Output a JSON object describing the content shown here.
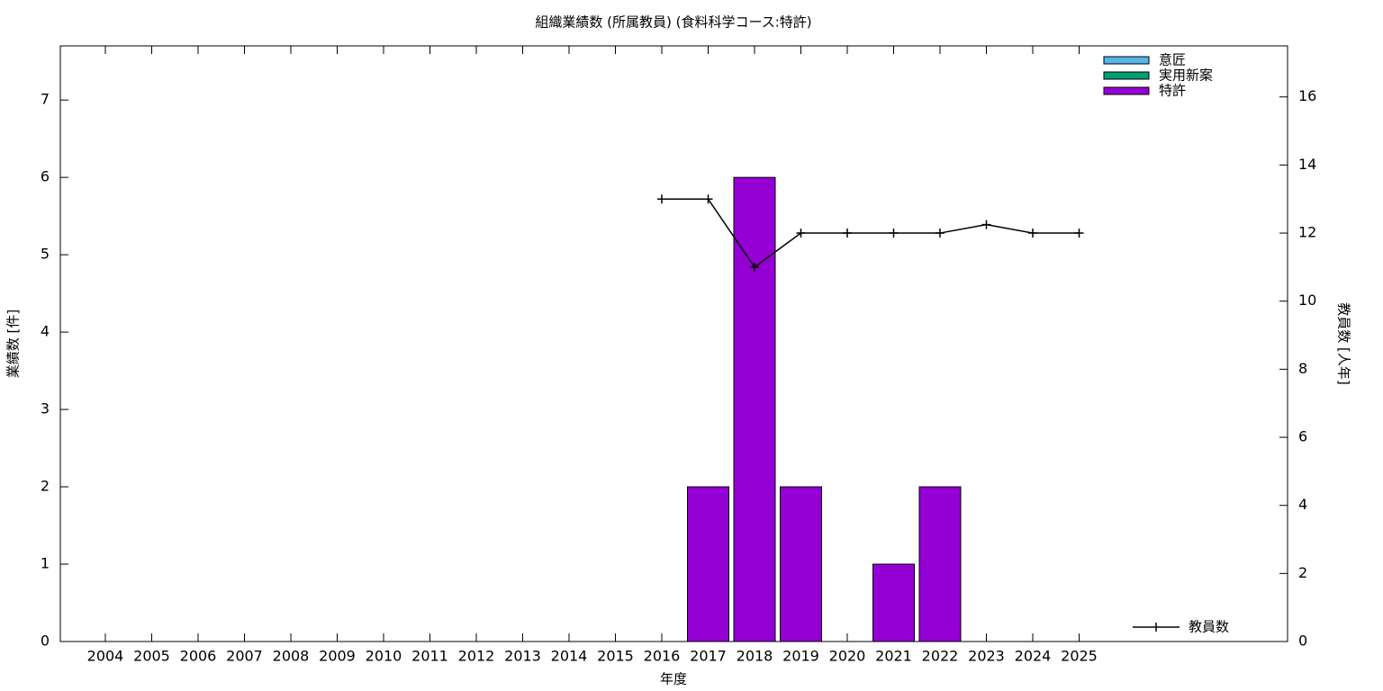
{
  "chart_data": {
    "type": "bar",
    "title": "組織業績数 (所属教員) (食料科学コース:特許)",
    "xlabel": "年度",
    "ylabel": "業績数 [件]",
    "y2label": "教員数 [人年]",
    "categories": [
      "2004",
      "2005",
      "2006",
      "2007",
      "2008",
      "2009",
      "2010",
      "2011",
      "2012",
      "2013",
      "2014",
      "2015",
      "2016",
      "2017",
      "2018",
      "2019",
      "2020",
      "2021",
      "2022",
      "2023",
      "2024",
      "2025"
    ],
    "series": [
      {
        "name": "意匠",
        "color": "#56b4e9",
        "values": [
          null,
          null,
          null,
          null,
          null,
          null,
          null,
          null,
          null,
          null,
          null,
          null,
          0,
          0,
          0,
          0,
          0,
          0,
          0,
          0,
          0,
          0
        ]
      },
      {
        "name": "実用新案",
        "color": "#009e73",
        "values": [
          null,
          null,
          null,
          null,
          null,
          null,
          null,
          null,
          null,
          null,
          null,
          null,
          0,
          0,
          0,
          0,
          0,
          0,
          0,
          0,
          0,
          0
        ]
      },
      {
        "name": "特許",
        "color": "#9400d3",
        "values": [
          null,
          null,
          null,
          null,
          null,
          null,
          null,
          null,
          null,
          null,
          null,
          null,
          0,
          2,
          6,
          2,
          0,
          1,
          2,
          0,
          0,
          0
        ]
      },
      {
        "name": "教員数",
        "color": "#000000",
        "axis": "y2",
        "type": "line",
        "values": [
          null,
          null,
          null,
          null,
          null,
          null,
          null,
          null,
          null,
          null,
          null,
          null,
          13,
          13,
          11,
          12,
          12,
          12,
          12,
          12.25,
          12,
          12
        ]
      }
    ],
    "ylim": [
      0,
      7.7
    ],
    "yticks": [
      0,
      1,
      2,
      3,
      4,
      5,
      6,
      7
    ],
    "y2lim": [
      0,
      17.5
    ],
    "y2ticks": [
      0,
      2,
      4,
      6,
      8,
      10,
      12,
      14,
      16
    ],
    "stacked": true
  }
}
